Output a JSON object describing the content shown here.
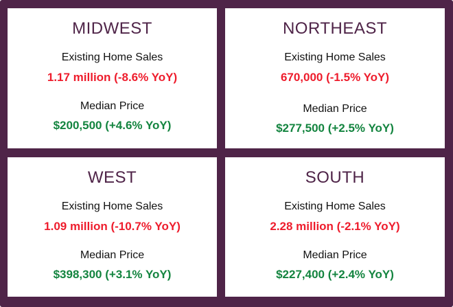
{
  "regions": [
    {
      "name": "MIDWEST",
      "sales_label": "Existing Home Sales",
      "sales_value": "1.17 million (-8.6% YoY)",
      "price_label": "Median Price",
      "price_value": "$200,500 (+4.6% YoY)"
    },
    {
      "name": "NORTHEAST",
      "sales_label": "Existing Home Sales",
      "sales_value": "670,000 (-1.5% YoY)",
      "price_label": "Median Price",
      "price_value": "$277,500 (+2.5% YoY)"
    },
    {
      "name": "WEST",
      "sales_label": "Existing Home Sales",
      "sales_value": "1.09 million (-10.7% YoY)",
      "price_label": "Median Price",
      "price_value": "$398,300 (+3.1% YoY)"
    },
    {
      "name": "SOUTH",
      "sales_label": "Existing Home Sales",
      "sales_value": "2.28 million (-2.1% YoY)",
      "price_label": "Median Price",
      "price_value": "$227,400 (+2.4% YoY)"
    }
  ],
  "colors": {
    "frame": "#4f2448",
    "region_title": "#4f2448",
    "decline": "#ee1c2c",
    "increase": "#13843f"
  }
}
